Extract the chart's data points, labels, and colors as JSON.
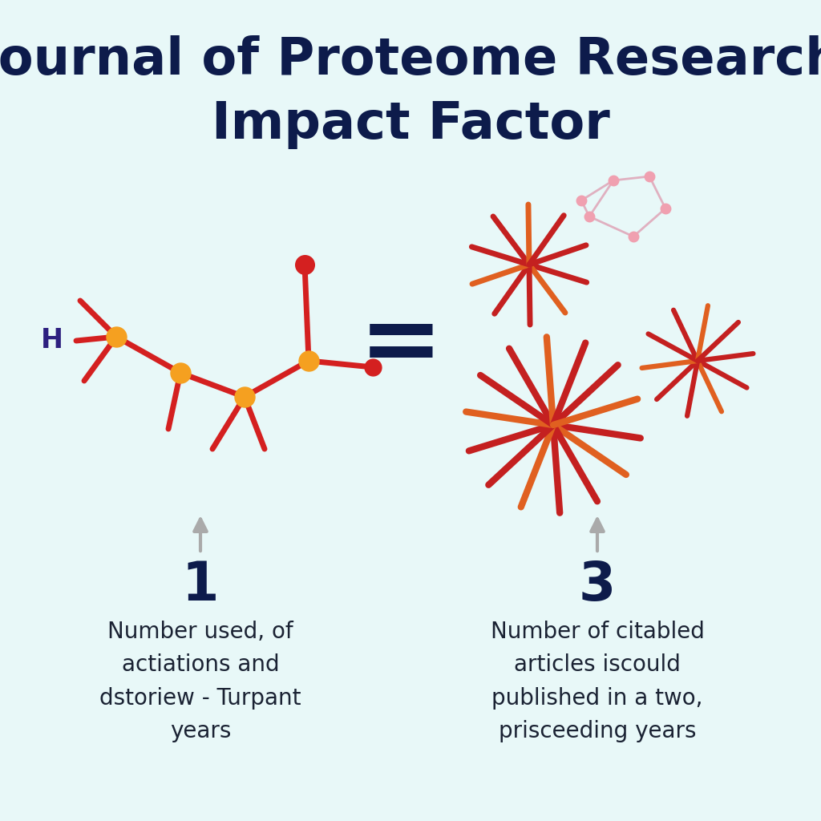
{
  "title_line1": "Journal of Proteome Research",
  "title_line2": "Impact Factor",
  "title_color": "#0d1b4b",
  "title_fontsize": 46,
  "background_color": "#e8f8f8",
  "left_number": "1",
  "right_number": "3",
  "number_fontsize": 48,
  "number_color": "#0d1b4b",
  "left_label": "Number used, of\nactiations and\ndstoriew - Turpant\nyears",
  "right_label": "Number of citabled\narticles iscould\npublished in a two,\nprisceeding years",
  "label_fontsize": 20,
  "label_color": "#1a2233",
  "equals_color": "#0d1b4b",
  "arrow_color": "#aaaaaa",
  "molecule_node_color": "#f5a020",
  "molecule_bond_color": "#d42020",
  "molecule_h_color": "#2d2080",
  "star_red": "#c42020",
  "star_orange": "#e06020",
  "star_pink_node_color": "#f0a0b0",
  "star_pink_line_color": "#e0b0c0"
}
